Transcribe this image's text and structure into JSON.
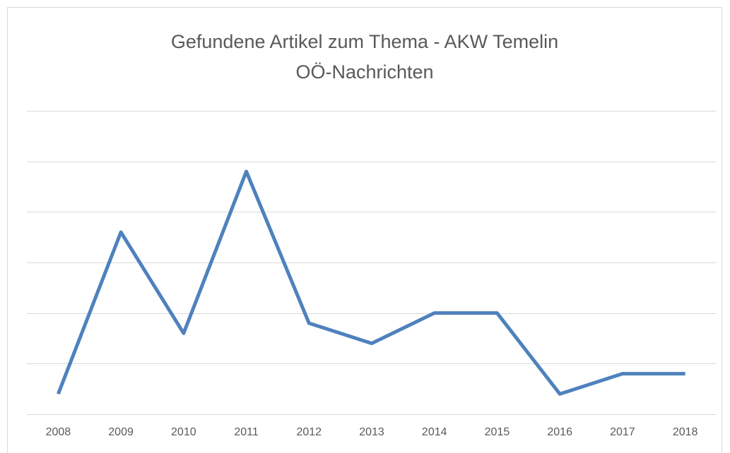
{
  "chart_data": {
    "type": "line",
    "title": [
      "Gefundene Artikel zum Thema - AKW Temelin",
      "OÖ-Nachrichten"
    ],
    "categories": [
      "2008",
      "2009",
      "2010",
      "2011",
      "2012",
      "2013",
      "2014",
      "2015",
      "2016",
      "2017",
      "2018"
    ],
    "series": [
      {
        "color": "#4f81bd",
        "values": [
          0.4,
          3.6,
          1.6,
          4.8,
          1.8,
          1.4,
          2.0,
          2.0,
          0.4,
          0.8,
          0.8
        ]
      }
    ],
    "ylim": [
      0,
      6
    ],
    "yticks": [
      0,
      1,
      2,
      3,
      4,
      5,
      6
    ],
    "grid": true
  }
}
